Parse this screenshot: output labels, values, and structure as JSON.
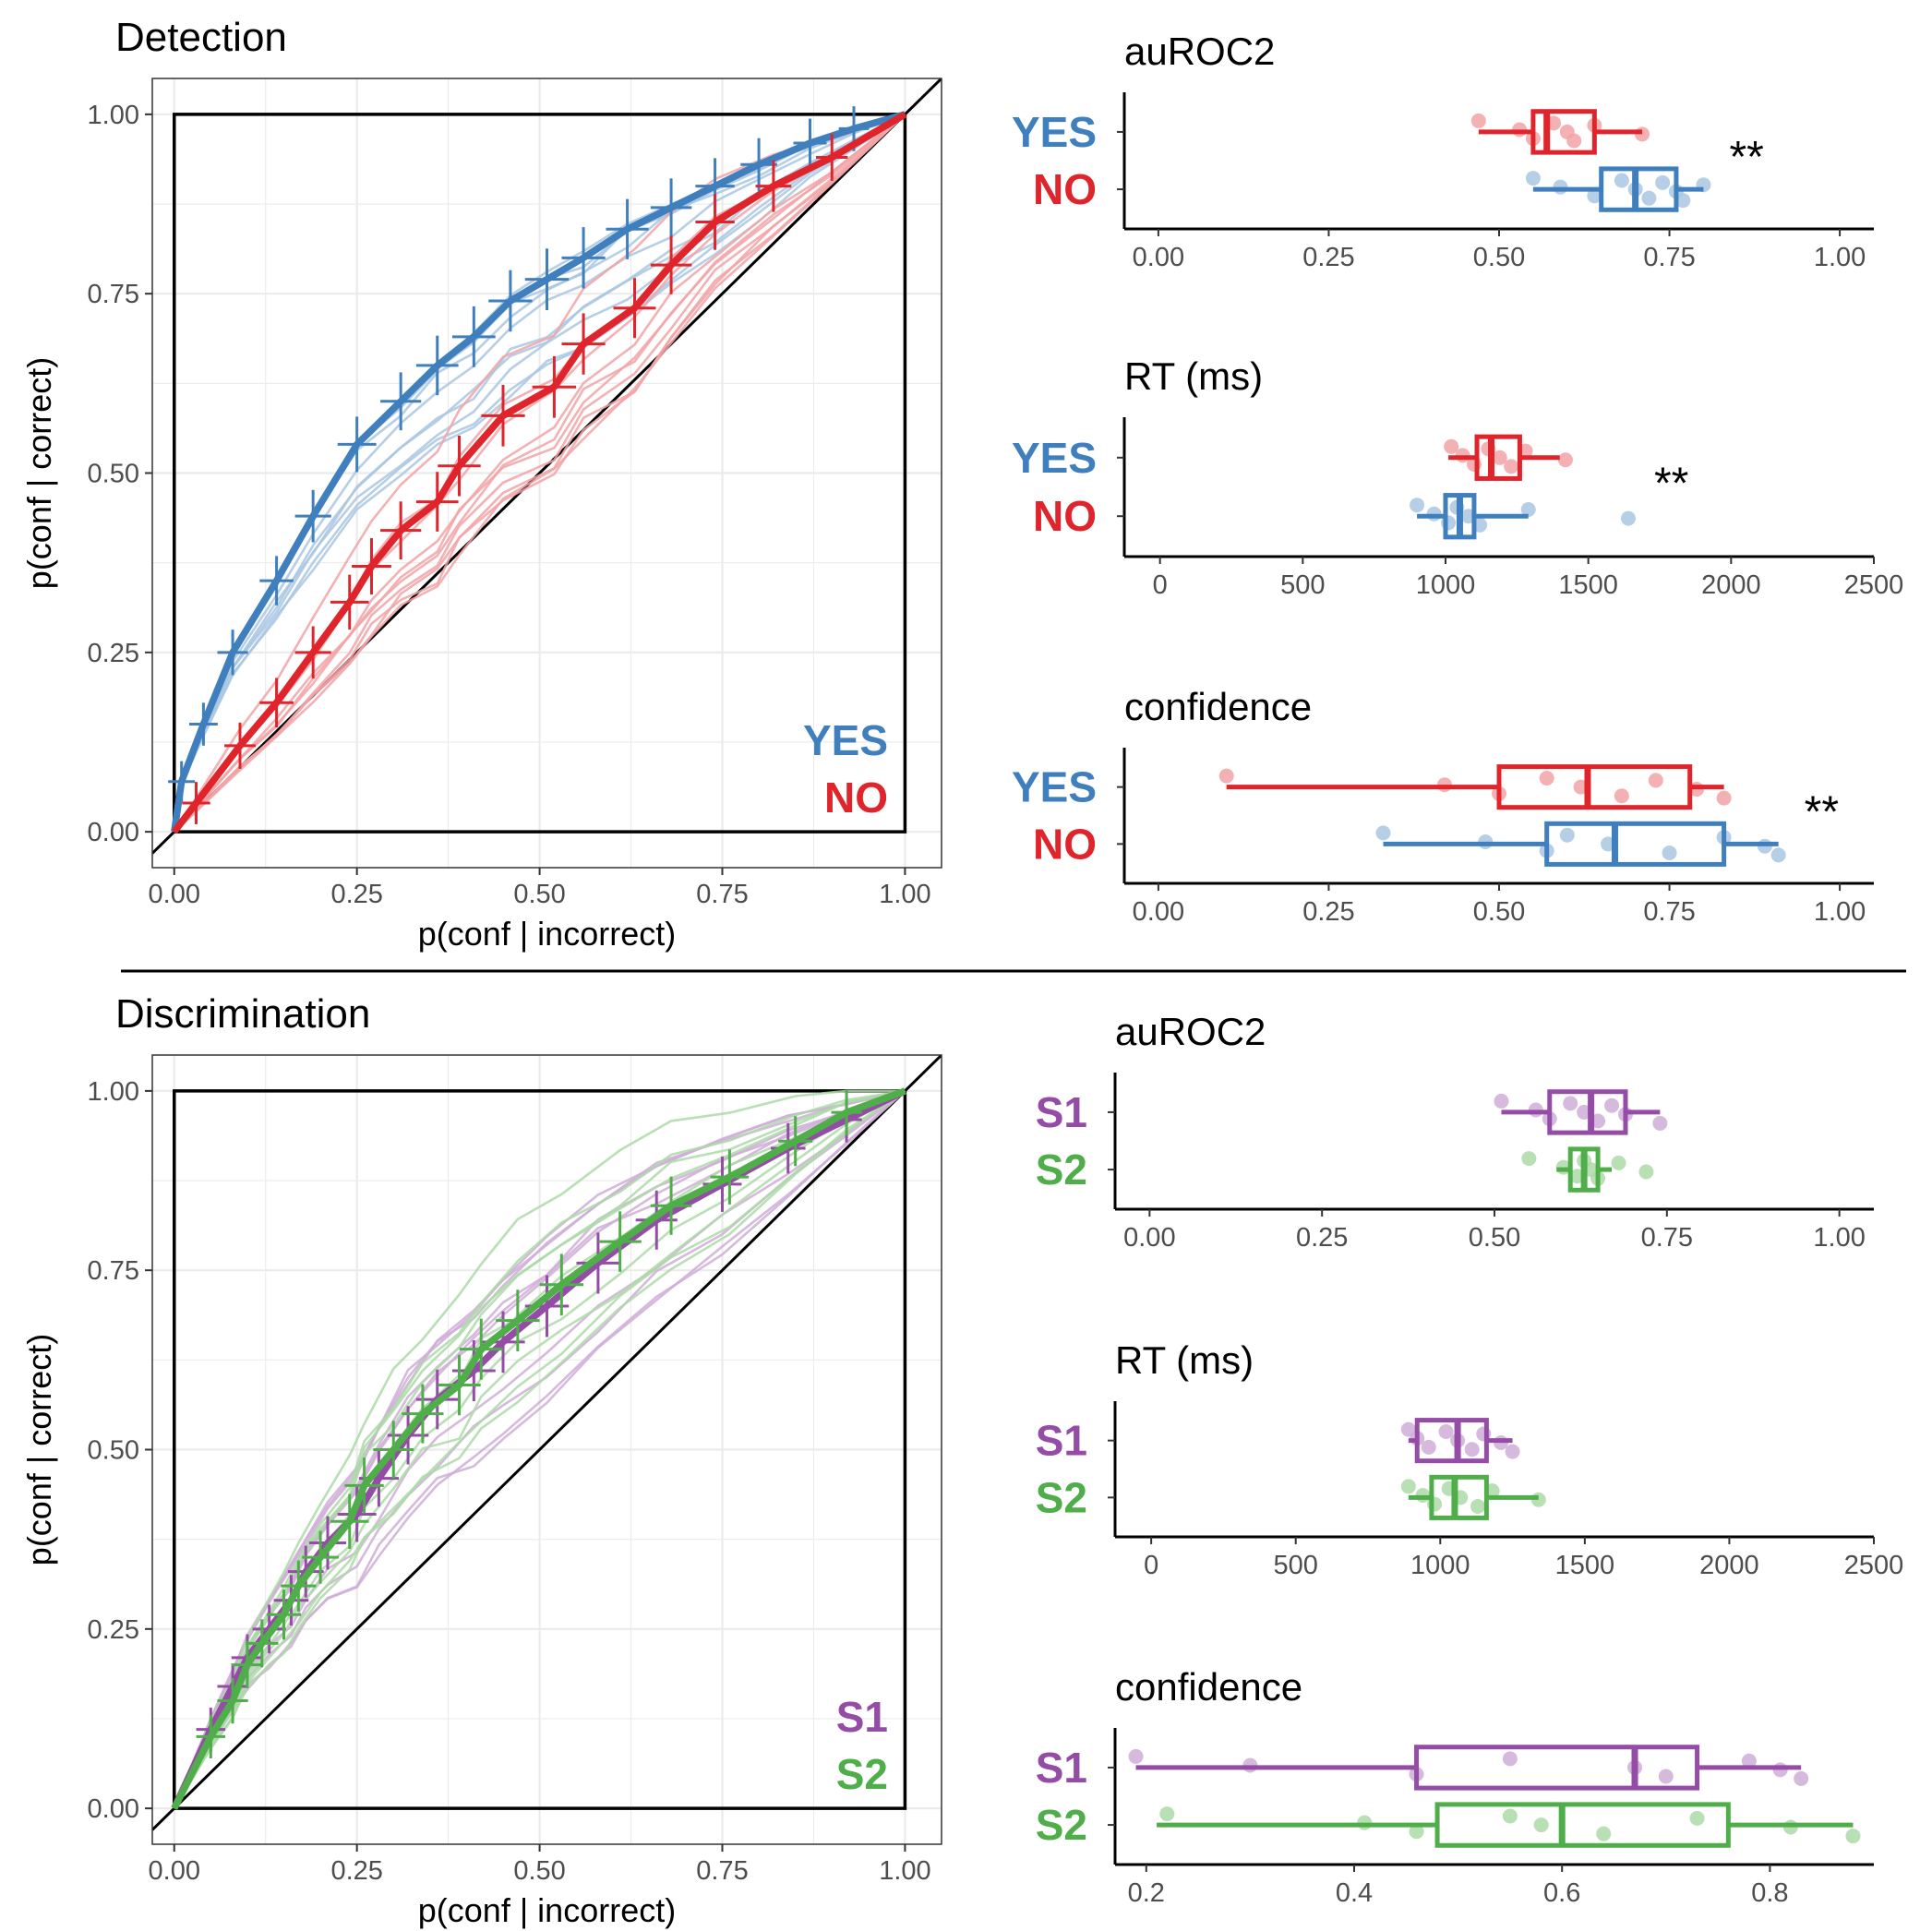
{
  "colors": {
    "yes": "#3f7fbd",
    "no": "#e0242b",
    "yes_light": "#a9c7e2",
    "no_light": "#f2a3a6",
    "s1": "#944ca6",
    "s2": "#4fae4a",
    "s1_light": "#cfaed7",
    "s2_light": "#add9a8",
    "grid": "#ebebeb",
    "axis": "#000000",
    "tick_text": "#4d4d4d"
  },
  "chart_data": [
    {
      "id": "detection-roc",
      "type": "line",
      "title": "Detection",
      "xlabel": "p(conf | incorrect)",
      "ylabel": "p(conf | correct)",
      "xlim": [
        -0.03,
        1.05
      ],
      "ylim": [
        -0.05,
        1.05
      ],
      "xticks": [
        "0.00",
        "0.25",
        "0.50",
        "0.75",
        "1.00"
      ],
      "yticks": [
        "0.00",
        "0.25",
        "0.50",
        "0.75",
        "1.00"
      ],
      "grid": true,
      "legend": {
        "position": "bottom-right",
        "entries": [
          "YES",
          "NO"
        ]
      },
      "series": [
        {
          "name": "YES",
          "color_key": "yes",
          "x": [
            0,
            0.01,
            0.04,
            0.08,
            0.14,
            0.19,
            0.25,
            0.31,
            0.36,
            0.41,
            0.46,
            0.51,
            0.56,
            0.62,
            0.68,
            0.74,
            0.8,
            0.87,
            0.93,
            1.0
          ],
          "y": [
            0,
            0.07,
            0.15,
            0.25,
            0.35,
            0.44,
            0.54,
            0.6,
            0.65,
            0.69,
            0.74,
            0.77,
            0.8,
            0.84,
            0.87,
            0.9,
            0.93,
            0.96,
            0.98,
            1.0
          ]
        },
        {
          "name": "NO",
          "color_key": "no",
          "x": [
            0,
            0.03,
            0.09,
            0.14,
            0.19,
            0.24,
            0.27,
            0.31,
            0.36,
            0.39,
            0.45,
            0.52,
            0.56,
            0.63,
            0.68,
            0.74,
            0.82,
            0.9,
            1.0
          ],
          "y": [
            0,
            0.04,
            0.12,
            0.18,
            0.25,
            0.32,
            0.37,
            0.42,
            0.46,
            0.51,
            0.58,
            0.62,
            0.68,
            0.73,
            0.79,
            0.85,
            0.9,
            0.94,
            1.0
          ]
        }
      ]
    },
    {
      "id": "discrimination-roc",
      "type": "line",
      "title": "Discrimination",
      "xlabel": "p(conf | incorrect)",
      "ylabel": "p(conf | correct)",
      "xlim": [
        -0.03,
        1.05
      ],
      "ylim": [
        -0.05,
        1.05
      ],
      "xticks": [
        "0.00",
        "0.25",
        "0.50",
        "0.75",
        "1.00"
      ],
      "yticks": [
        "0.00",
        "0.25",
        "0.50",
        "0.75",
        "1.00"
      ],
      "grid": true,
      "legend": {
        "position": "bottom-right",
        "entries": [
          "S1",
          "S2"
        ]
      },
      "series": [
        {
          "name": "S1",
          "color_key": "s1",
          "x": [
            0,
            0.05,
            0.08,
            0.1,
            0.13,
            0.16,
            0.18,
            0.21,
            0.25,
            0.28,
            0.32,
            0.36,
            0.41,
            0.45,
            0.51,
            0.58,
            0.66,
            0.75,
            0.84,
            0.92,
            1.0
          ],
          "y": [
            0,
            0.11,
            0.17,
            0.21,
            0.25,
            0.29,
            0.33,
            0.37,
            0.41,
            0.46,
            0.52,
            0.57,
            0.61,
            0.65,
            0.7,
            0.76,
            0.82,
            0.87,
            0.92,
            0.96,
            1.0
          ]
        },
        {
          "name": "S2",
          "color_key": "s2",
          "x": [
            0,
            0.05,
            0.08,
            0.1,
            0.12,
            0.15,
            0.17,
            0.2,
            0.24,
            0.26,
            0.3,
            0.34,
            0.39,
            0.42,
            0.47,
            0.53,
            0.61,
            0.68,
            0.76,
            0.85,
            0.92,
            1.0
          ],
          "y": [
            0,
            0.1,
            0.15,
            0.2,
            0.23,
            0.27,
            0.31,
            0.35,
            0.4,
            0.45,
            0.5,
            0.55,
            0.59,
            0.64,
            0.68,
            0.73,
            0.79,
            0.84,
            0.88,
            0.93,
            0.97,
            1.0
          ]
        }
      ]
    },
    {
      "id": "detection-auroc2",
      "type": "box",
      "title": "auROC2",
      "xlim": [
        -0.05,
        1.05
      ],
      "xticks": [
        "0.00",
        "0.25",
        "0.50",
        "0.75",
        "1.00"
      ],
      "annotation": "**",
      "groups": [
        {
          "name": "YES",
          "color_key": "no",
          "whisker": [
            0.47,
            0.71
          ],
          "box": [
            0.55,
            0.64
          ],
          "median": 0.57,
          "points": [
            0.47,
            0.53,
            0.55,
            0.58,
            0.6,
            0.61,
            0.64,
            0.71
          ]
        },
        {
          "name": "NO",
          "color_key": "yes",
          "whisker": [
            0.55,
            0.8
          ],
          "box": [
            0.65,
            0.76
          ],
          "median": 0.7,
          "points": [
            0.55,
            0.59,
            0.64,
            0.68,
            0.7,
            0.72,
            0.74,
            0.76,
            0.77,
            0.8
          ]
        }
      ]
    },
    {
      "id": "detection-rt",
      "type": "box",
      "title": "RT (ms)",
      "xlim": [
        -125,
        2500
      ],
      "xticks": [
        "0",
        "500",
        "1000",
        "1500",
        "2000",
        "2500"
      ],
      "annotation": "**",
      "groups": [
        {
          "name": "YES",
          "color_key": "no",
          "whisker": [
            1010,
            1400
          ],
          "box": [
            1110,
            1260
          ],
          "median": 1160,
          "points": [
            1020,
            1060,
            1100,
            1150,
            1190,
            1230,
            1280,
            1420
          ]
        },
        {
          "name": "NO",
          "color_key": "yes",
          "whisker": [
            900,
            1290
          ],
          "box": [
            1000,
            1100
          ],
          "median": 1050,
          "points": [
            900,
            960,
            1010,
            1040,
            1080,
            1120,
            1290,
            1640
          ]
        }
      ]
    },
    {
      "id": "detection-confidence",
      "type": "box",
      "title": "confidence",
      "xlim": [
        -0.05,
        1.05
      ],
      "xticks": [
        "0.00",
        "0.25",
        "0.50",
        "0.75",
        "1.00"
      ],
      "annotation": "**",
      "groups": [
        {
          "name": "YES",
          "color_key": "no",
          "whisker": [
            0.1,
            0.83
          ],
          "box": [
            0.5,
            0.78
          ],
          "median": 0.63,
          "points": [
            0.1,
            0.42,
            0.5,
            0.57,
            0.62,
            0.68,
            0.73,
            0.79,
            0.83
          ]
        },
        {
          "name": "NO",
          "color_key": "yes",
          "whisker": [
            0.33,
            0.91
          ],
          "box": [
            0.57,
            0.83
          ],
          "median": 0.67,
          "points": [
            0.33,
            0.48,
            0.57,
            0.6,
            0.66,
            0.75,
            0.83,
            0.89,
            0.91
          ]
        }
      ]
    },
    {
      "id": "discrimination-auroc2",
      "type": "box",
      "title": "auROC2",
      "xlim": [
        -0.05,
        1.05
      ],
      "xticks": [
        "0.00",
        "0.25",
        "0.50",
        "0.75",
        "1.00"
      ],
      "annotation": "",
      "groups": [
        {
          "name": "S1",
          "color_key": "s1",
          "whisker": [
            0.51,
            0.74
          ],
          "box": [
            0.58,
            0.69
          ],
          "median": 0.64,
          "points": [
            0.51,
            0.56,
            0.58,
            0.61,
            0.63,
            0.65,
            0.67,
            0.69,
            0.74
          ]
        },
        {
          "name": "S2",
          "color_key": "s2",
          "whisker": [
            0.59,
            0.67
          ],
          "box": [
            0.61,
            0.65
          ],
          "median": 0.63,
          "points": [
            0.55,
            0.6,
            0.62,
            0.63,
            0.64,
            0.65,
            0.68,
            0.72
          ]
        }
      ]
    },
    {
      "id": "discrimination-rt",
      "type": "box",
      "title": "RT (ms)",
      "xlim": [
        -125,
        2500
      ],
      "xticks": [
        "0",
        "500",
        "1000",
        "1500",
        "2000",
        "2500"
      ],
      "annotation": "",
      "groups": [
        {
          "name": "S1",
          "color_key": "s1",
          "whisker": [
            890,
            1250
          ],
          "box": [
            920,
            1160
          ],
          "median": 1060,
          "points": [
            890,
            920,
            960,
            1020,
            1060,
            1110,
            1150,
            1210,
            1250
          ]
        },
        {
          "name": "S2",
          "color_key": "s2",
          "whisker": [
            890,
            1340
          ],
          "box": [
            970,
            1160
          ],
          "median": 1050,
          "points": [
            890,
            940,
            980,
            1030,
            1070,
            1130,
            1180,
            1340
          ]
        }
      ]
    },
    {
      "id": "discrimination-confidence",
      "type": "box",
      "title": "confidence",
      "xlim": [
        0.17,
        0.9
      ],
      "xticks": [
        "0.2",
        "0.4",
        "0.6",
        "0.8"
      ],
      "tick_values": [
        0.2,
        0.4,
        0.6,
        0.8
      ],
      "annotation": "",
      "groups": [
        {
          "name": "S1",
          "color_key": "s1",
          "whisker": [
            0.19,
            0.83
          ],
          "box": [
            0.46,
            0.73
          ],
          "median": 0.67,
          "points": [
            0.19,
            0.3,
            0.46,
            0.55,
            0.67,
            0.7,
            0.78,
            0.81,
            0.83
          ]
        },
        {
          "name": "S2",
          "color_key": "s2",
          "whisker": [
            0.21,
            0.88
          ],
          "box": [
            0.48,
            0.76
          ],
          "median": 0.6,
          "points": [
            0.22,
            0.41,
            0.46,
            0.55,
            0.58,
            0.64,
            0.73,
            0.82,
            0.88
          ]
        }
      ]
    }
  ]
}
